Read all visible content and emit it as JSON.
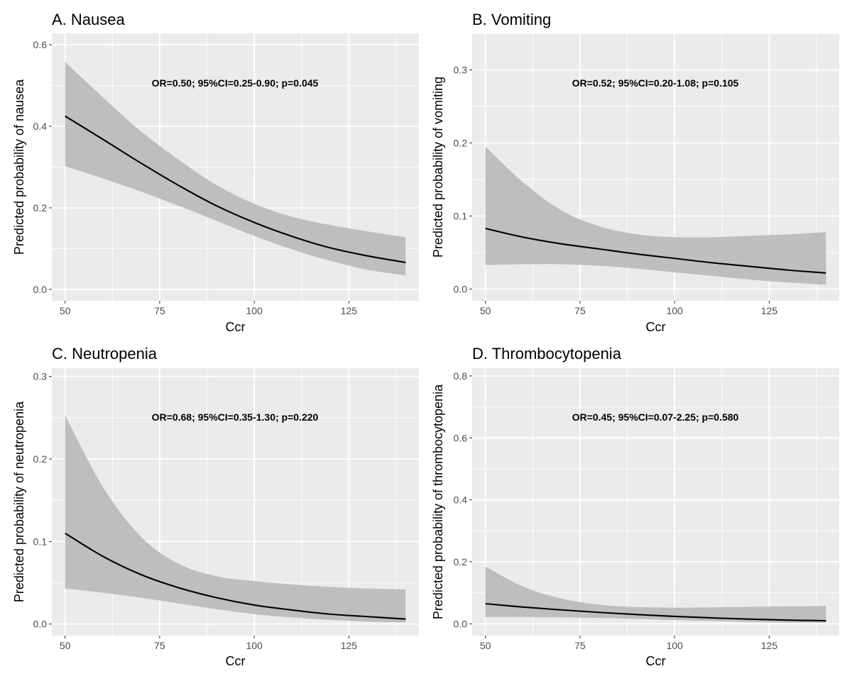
{
  "chart_data": [
    {
      "type": "line",
      "title": "A. Nausea",
      "xlabel": "Ccr",
      "ylabel": "Predicted probability of nausea",
      "annotation": "OR=0.50; 95%CI=0.25-0.90; p=0.045",
      "xlim": [
        46.5,
        143.5
      ],
      "ylim": [
        -0.028,
        0.628
      ],
      "x_ticks": [
        50,
        75,
        100,
        125
      ],
      "y_ticks": [
        0.0,
        0.2,
        0.4,
        0.6
      ],
      "x_tick_labels": [
        "50",
        "75",
        "100",
        "125"
      ],
      "y_tick_labels": [
        "0.0",
        "0.2",
        "0.4",
        "0.6"
      ],
      "grid": true,
      "band_color": "#bebebe",
      "line_color": "#000000",
      "panel_color": "#ebebeb",
      "x": [
        50,
        60,
        70,
        80,
        90,
        100,
        110,
        120,
        130,
        140
      ],
      "y": [
        0.425,
        0.368,
        0.31,
        0.255,
        0.205,
        0.164,
        0.13,
        0.102,
        0.082,
        0.066
      ],
      "lower": [
        0.302,
        0.272,
        0.24,
        0.205,
        0.168,
        0.131,
        0.098,
        0.07,
        0.048,
        0.034
      ],
      "upper": [
        0.558,
        0.471,
        0.388,
        0.318,
        0.256,
        0.21,
        0.178,
        0.158,
        0.142,
        0.128
      ]
    },
    {
      "type": "line",
      "title": "B. Vomiting",
      "xlabel": "Ccr",
      "ylabel": "Predicted probability of vomiting",
      "annotation": "OR=0.52; 95%CI=0.20-1.08; p=0.105",
      "xlim": [
        46.5,
        143.5
      ],
      "ylim": [
        -0.016,
        0.35
      ],
      "x_ticks": [
        50,
        75,
        100,
        125
      ],
      "y_ticks": [
        0.0,
        0.1,
        0.2,
        0.3
      ],
      "x_tick_labels": [
        "50",
        "75",
        "100",
        "125"
      ],
      "y_tick_labels": [
        "0.0",
        "0.1",
        "0.2",
        "0.3"
      ],
      "grid": true,
      "band_color": "#bebebe",
      "line_color": "#000000",
      "panel_color": "#ebebeb",
      "x": [
        50,
        60,
        70,
        80,
        90,
        100,
        110,
        120,
        130,
        140
      ],
      "y": [
        0.083,
        0.071,
        0.062,
        0.055,
        0.048,
        0.042,
        0.036,
        0.031,
        0.026,
        0.022
      ],
      "lower": [
        0.033,
        0.034,
        0.034,
        0.032,
        0.028,
        0.023,
        0.018,
        0.013,
        0.009,
        0.006
      ],
      "upper": [
        0.195,
        0.146,
        0.108,
        0.086,
        0.075,
        0.071,
        0.071,
        0.073,
        0.075,
        0.078
      ]
    },
    {
      "type": "line",
      "title": "C. Neutropenia",
      "xlabel": "Ccr",
      "ylabel": "Predicted probability of neutropenia",
      "annotation": "OR=0.68; 95%CI=0.35-1.30; p=0.220",
      "xlim": [
        46.5,
        143.5
      ],
      "ylim": [
        -0.014,
        0.31
      ],
      "x_ticks": [
        50,
        75,
        100,
        125
      ],
      "y_ticks": [
        0.0,
        0.1,
        0.2,
        0.3
      ],
      "x_tick_labels": [
        "50",
        "75",
        "100",
        "125"
      ],
      "y_tick_labels": [
        "0.0",
        "0.1",
        "0.2",
        "0.3"
      ],
      "grid": true,
      "band_color": "#bebebe",
      "line_color": "#000000",
      "panel_color": "#ebebeb",
      "x": [
        50,
        60,
        70,
        80,
        90,
        100,
        110,
        120,
        130,
        140
      ],
      "y": [
        0.11,
        0.082,
        0.06,
        0.044,
        0.032,
        0.023,
        0.017,
        0.012,
        0.009,
        0.006
      ],
      "lower": [
        0.043,
        0.038,
        0.032,
        0.025,
        0.018,
        0.012,
        0.008,
        0.005,
        0.003,
        0.002
      ],
      "upper": [
        0.253,
        0.166,
        0.106,
        0.073,
        0.058,
        0.052,
        0.048,
        0.045,
        0.043,
        0.042
      ]
    },
    {
      "type": "line",
      "title": "D. Thrombocytopenia",
      "xlabel": "Ccr",
      "ylabel": "Predicted probability of thrombocytopenia",
      "annotation": "OR=0.45; 95%CI=0.07-2.25; p=0.580",
      "xlim": [
        46.5,
        143.5
      ],
      "ylim": [
        -0.038,
        0.825
      ],
      "x_ticks": [
        50,
        75,
        100,
        125
      ],
      "y_ticks": [
        0.0,
        0.2,
        0.4,
        0.6,
        0.8
      ],
      "x_tick_labels": [
        "50",
        "75",
        "100",
        "125"
      ],
      "y_tick_labels": [
        "0.0",
        "0.2",
        "0.4",
        "0.6",
        "0.8"
      ],
      "grid": true,
      "band_color": "#bebebe",
      "line_color": "#000000",
      "panel_color": "#ebebeb",
      "x": [
        50,
        60,
        70,
        80,
        90,
        100,
        110,
        120,
        130,
        140
      ],
      "y": [
        0.065,
        0.054,
        0.045,
        0.037,
        0.03,
        0.024,
        0.019,
        0.015,
        0.012,
        0.01
      ],
      "lower": [
        0.022,
        0.022,
        0.021,
        0.019,
        0.016,
        0.012,
        0.009,
        0.006,
        0.004,
        0.003
      ],
      "upper": [
        0.185,
        0.12,
        0.082,
        0.062,
        0.054,
        0.052,
        0.053,
        0.055,
        0.056,
        0.058
      ]
    }
  ]
}
